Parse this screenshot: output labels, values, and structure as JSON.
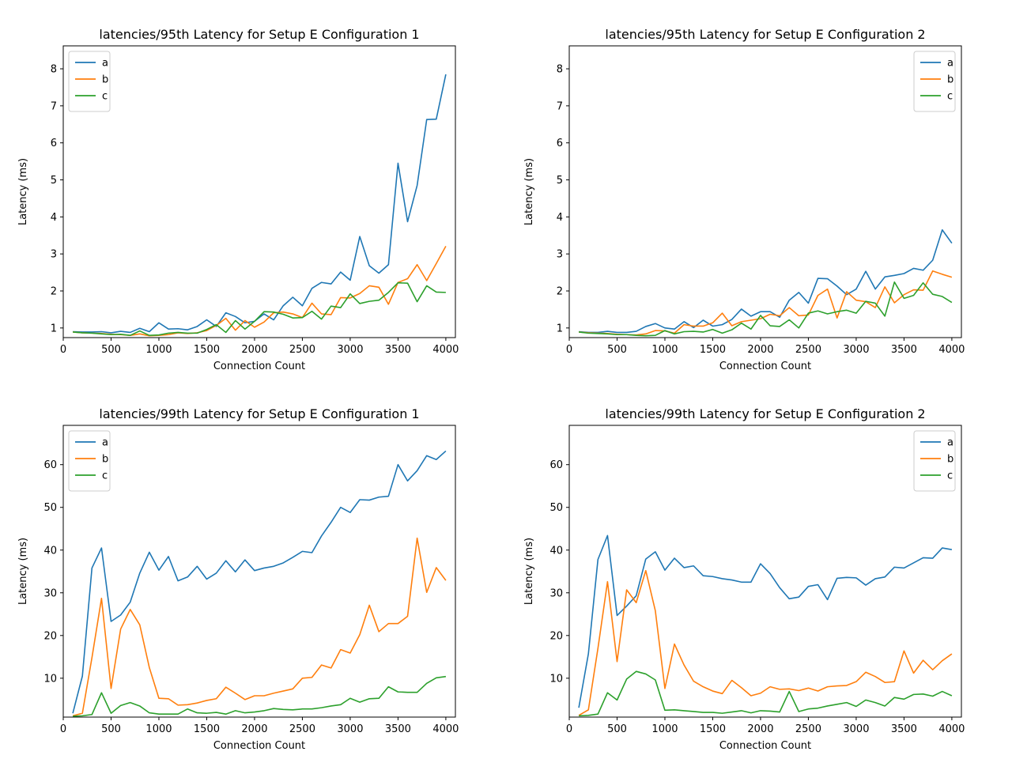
{
  "figure": {
    "background": "#ffffff"
  },
  "series_colors": {
    "a": "#1f77b4",
    "b": "#ff7f0e",
    "c": "#2ca02c"
  },
  "chart_data": [
    {
      "type": "line",
      "title": "latencies/95th Latency for Setup E Configuration 1",
      "xlabel": "Connection Count",
      "ylabel": "Latency (ms)",
      "xlim": [
        0,
        4100
      ],
      "ylim": [
        0.74,
        8.62
      ],
      "xticks": [
        0,
        500,
        1000,
        1500,
        2000,
        2500,
        3000,
        3500,
        4000
      ],
      "yticks": [
        1,
        2,
        3,
        4,
        5,
        6,
        7,
        8
      ],
      "legend": "top-left",
      "x": [
        100,
        200,
        300,
        400,
        500,
        600,
        700,
        800,
        900,
        1000,
        1100,
        1200,
        1300,
        1400,
        1500,
        1600,
        1700,
        1800,
        1900,
        2000,
        2100,
        2200,
        2300,
        2400,
        2500,
        2600,
        2700,
        2800,
        2900,
        3000,
        3100,
        3200,
        3300,
        3400,
        3500,
        3600,
        3700,
        3800,
        3900,
        4000
      ],
      "series": [
        {
          "name": "a",
          "values": [
            0.9,
            0.89,
            0.89,
            0.9,
            0.87,
            0.91,
            0.88,
            0.99,
            0.9,
            1.14,
            0.97,
            0.98,
            0.95,
            1.04,
            1.22,
            1.04,
            1.41,
            1.31,
            1.14,
            1.18,
            1.38,
            1.22,
            1.6,
            1.83,
            1.6,
            2.07,
            2.23,
            2.19,
            2.51,
            2.29,
            3.47,
            2.68,
            2.48,
            2.71,
            5.45,
            3.87,
            4.85,
            6.63,
            6.64,
            7.85
          ]
        },
        {
          "name": "b",
          "values": [
            0.89,
            0.87,
            0.86,
            0.85,
            0.83,
            0.82,
            0.8,
            0.84,
            0.79,
            0.8,
            0.82,
            0.87,
            0.85,
            0.87,
            0.93,
            1.07,
            1.26,
            0.94,
            1.2,
            1.02,
            1.16,
            1.41,
            1.43,
            1.38,
            1.28,
            1.67,
            1.38,
            1.36,
            1.82,
            1.81,
            1.93,
            2.14,
            2.1,
            1.64,
            2.23,
            2.33,
            2.71,
            2.28,
            2.74,
            3.21
          ]
        },
        {
          "name": "c",
          "values": [
            0.89,
            0.87,
            0.86,
            0.84,
            0.82,
            0.83,
            0.8,
            0.92,
            0.8,
            0.81,
            0.86,
            0.88,
            0.86,
            0.86,
            0.96,
            1.09,
            0.88,
            1.2,
            0.97,
            1.18,
            1.44,
            1.43,
            1.37,
            1.27,
            1.28,
            1.45,
            1.24,
            1.59,
            1.55,
            1.92,
            1.66,
            1.72,
            1.75,
            1.96,
            2.22,
            2.21,
            1.71,
            2.14,
            1.97,
            1.96
          ]
        }
      ]
    },
    {
      "type": "line",
      "title": "latencies/95th Latency for Setup E Configuration 2",
      "xlabel": "Connection Count",
      "ylabel": "Latency (ms)",
      "xlim": [
        0,
        4100
      ],
      "ylim": [
        0.74,
        8.62
      ],
      "xticks": [
        0,
        500,
        1000,
        1500,
        2000,
        2500,
        3000,
        3500,
        4000
      ],
      "yticks": [
        1,
        2,
        3,
        4,
        5,
        6,
        7,
        8
      ],
      "legend": "top-right",
      "x": [
        100,
        200,
        300,
        400,
        500,
        600,
        700,
        800,
        900,
        1000,
        1100,
        1200,
        1300,
        1400,
        1500,
        1600,
        1700,
        1800,
        1900,
        2000,
        2100,
        2200,
        2300,
        2400,
        2500,
        2600,
        2700,
        2800,
        2900,
        3000,
        3100,
        3200,
        3300,
        3400,
        3500,
        3600,
        3700,
        3800,
        3900,
        4000
      ],
      "series": [
        {
          "name": "a",
          "values": [
            0.9,
            0.88,
            0.88,
            0.91,
            0.88,
            0.88,
            0.91,
            1.04,
            1.12,
            1.0,
            0.97,
            1.17,
            1.01,
            1.21,
            1.05,
            1.09,
            1.23,
            1.51,
            1.32,
            1.44,
            1.44,
            1.29,
            1.75,
            1.96,
            1.67,
            2.34,
            2.33,
            2.13,
            1.9,
            2.05,
            2.53,
            2.05,
            2.38,
            2.42,
            2.47,
            2.61,
            2.56,
            2.83,
            3.65,
            3.29
          ]
        },
        {
          "name": "b",
          "values": [
            0.89,
            0.87,
            0.86,
            0.85,
            0.83,
            0.82,
            0.81,
            0.84,
            0.93,
            0.92,
            0.86,
            1.09,
            1.05,
            1.05,
            1.14,
            1.4,
            1.06,
            1.17,
            1.21,
            1.25,
            1.37,
            1.33,
            1.55,
            1.33,
            1.35,
            1.88,
            2.05,
            1.27,
            1.98,
            1.75,
            1.71,
            1.55,
            2.11,
            1.68,
            1.9,
            2.03,
            2.02,
            2.54,
            2.45,
            2.37
          ]
        },
        {
          "name": "c",
          "values": [
            0.89,
            0.86,
            0.85,
            0.84,
            0.82,
            0.82,
            0.8,
            0.79,
            0.8,
            0.93,
            0.84,
            0.9,
            0.91,
            0.89,
            0.96,
            0.86,
            0.95,
            1.13,
            0.97,
            1.34,
            1.06,
            1.04,
            1.22,
            1.0,
            1.4,
            1.46,
            1.38,
            1.44,
            1.48,
            1.4,
            1.72,
            1.67,
            1.32,
            2.24,
            1.8,
            1.88,
            2.22,
            1.91,
            1.85,
            1.69
          ]
        }
      ]
    },
    {
      "type": "line",
      "title": "latencies/99th Latency for Setup E Configuration 1",
      "xlabel": "Connection Count",
      "ylabel": "Latency (ms)",
      "xlim": [
        0,
        4100
      ],
      "ylim": [
        0.9,
        69.2
      ],
      "xticks": [
        0,
        500,
        1000,
        1500,
        2000,
        2500,
        3000,
        3500,
        4000
      ],
      "yticks": [
        10,
        20,
        30,
        40,
        50,
        60
      ],
      "legend": "top-left",
      "x": [
        100,
        200,
        300,
        400,
        500,
        600,
        700,
        800,
        900,
        1000,
        1100,
        1200,
        1300,
        1400,
        1500,
        1600,
        1700,
        1800,
        1900,
        2000,
        2100,
        2200,
        2300,
        2400,
        2500,
        2600,
        2700,
        2800,
        2900,
        3000,
        3100,
        3200,
        3300,
        3400,
        3500,
        3600,
        3700,
        3800,
        3900,
        4000
      ],
      "series": [
        {
          "name": "a",
          "values": [
            1.8,
            10.5,
            35.8,
            40.5,
            23.3,
            24.8,
            27.8,
            34.6,
            39.5,
            35.3,
            38.5,
            32.8,
            33.7,
            36.2,
            33.2,
            34.6,
            37.5,
            34.9,
            37.7,
            35.2,
            35.8,
            36.2,
            37.0,
            38.3,
            39.7,
            39.4,
            43.3,
            46.5,
            50.0,
            48.8,
            51.8,
            51.7,
            52.4,
            52.6,
            60.0,
            56.2,
            58.6,
            62.1,
            61.2,
            63.2
          ]
        },
        {
          "name": "b",
          "values": [
            1.2,
            1.8,
            14.8,
            28.7,
            7.6,
            21.5,
            26.1,
            22.5,
            12.5,
            5.3,
            5.2,
            3.7,
            3.8,
            4.2,
            4.8,
            5.2,
            7.9,
            6.5,
            5.0,
            5.9,
            5.9,
            6.5,
            7.0,
            7.5,
            10.0,
            10.2,
            13.1,
            12.4,
            16.7,
            15.9,
            20.2,
            27.1,
            20.9,
            22.8,
            22.8,
            24.5,
            42.8,
            30.1,
            35.9,
            32.9
          ]
        },
        {
          "name": "c",
          "values": [
            1.1,
            1.2,
            1.5,
            6.6,
            1.8,
            3.6,
            4.3,
            3.5,
            1.9,
            1.6,
            1.6,
            1.6,
            2.8,
            1.9,
            1.8,
            2.0,
            1.6,
            2.4,
            1.9,
            2.1,
            2.4,
            2.9,
            2.7,
            2.6,
            2.8,
            2.8,
            3.1,
            3.5,
            3.8,
            5.3,
            4.4,
            5.2,
            5.3,
            8.0,
            6.8,
            6.7,
            6.7,
            8.8,
            10.1,
            10.4
          ]
        }
      ]
    },
    {
      "type": "line",
      "title": "latencies/99th Latency for Setup E Configuration 2",
      "xlabel": "Connection Count",
      "ylabel": "Latency (ms)",
      "xlim": [
        0,
        4100
      ],
      "ylim": [
        0.9,
        69.2
      ],
      "xticks": [
        0,
        500,
        1000,
        1500,
        2000,
        2500,
        3000,
        3500,
        4000
      ],
      "yticks": [
        10,
        20,
        30,
        40,
        50,
        60
      ],
      "legend": "top-right",
      "x": [
        100,
        200,
        300,
        400,
        500,
        600,
        700,
        800,
        900,
        1000,
        1100,
        1200,
        1300,
        1400,
        1500,
        1600,
        1700,
        1800,
        1900,
        2000,
        2100,
        2200,
        2300,
        2400,
        2500,
        2600,
        2700,
        2800,
        2900,
        3000,
        3100,
        3200,
        3300,
        3400,
        3500,
        3600,
        3700,
        3800,
        3900,
        4000
      ],
      "series": [
        {
          "name": "a",
          "values": [
            3.1,
            15.7,
            37.8,
            43.4,
            24.7,
            26.9,
            29.3,
            37.9,
            39.6,
            35.3,
            38.1,
            35.9,
            36.3,
            34.0,
            33.8,
            33.3,
            33.0,
            32.5,
            32.5,
            36.8,
            34.5,
            31.2,
            28.6,
            29.0,
            31.5,
            31.9,
            28.4,
            33.4,
            33.6,
            33.5,
            31.8,
            33.3,
            33.7,
            36.0,
            35.8,
            37.0,
            38.2,
            38.1,
            40.5,
            40.1
          ]
        },
        {
          "name": "b",
          "values": [
            1.3,
            2.6,
            17.0,
            32.6,
            13.9,
            30.7,
            27.7,
            35.2,
            25.8,
            7.6,
            18.0,
            13.1,
            9.3,
            8.0,
            7.0,
            6.4,
            9.5,
            7.8,
            5.9,
            6.5,
            8.0,
            7.4,
            7.5,
            7.1,
            7.7,
            7.0,
            8.0,
            8.2,
            8.3,
            9.2,
            11.4,
            10.4,
            9.0,
            9.2,
            16.4,
            11.2,
            14.2,
            12.0,
            14.1,
            15.7
          ]
        },
        {
          "name": "c",
          "values": [
            1.2,
            1.3,
            1.6,
            6.6,
            4.9,
            9.8,
            11.6,
            11.0,
            9.6,
            2.5,
            2.6,
            2.4,
            2.2,
            2.0,
            2.0,
            1.8,
            2.1,
            2.4,
            1.9,
            2.4,
            2.3,
            2.1,
            6.9,
            2.2,
            2.8,
            3.0,
            3.5,
            3.9,
            4.3,
            3.4,
            4.9,
            4.3,
            3.5,
            5.5,
            5.1,
            6.2,
            6.3,
            5.8,
            6.9,
            5.9
          ]
        }
      ]
    }
  ]
}
